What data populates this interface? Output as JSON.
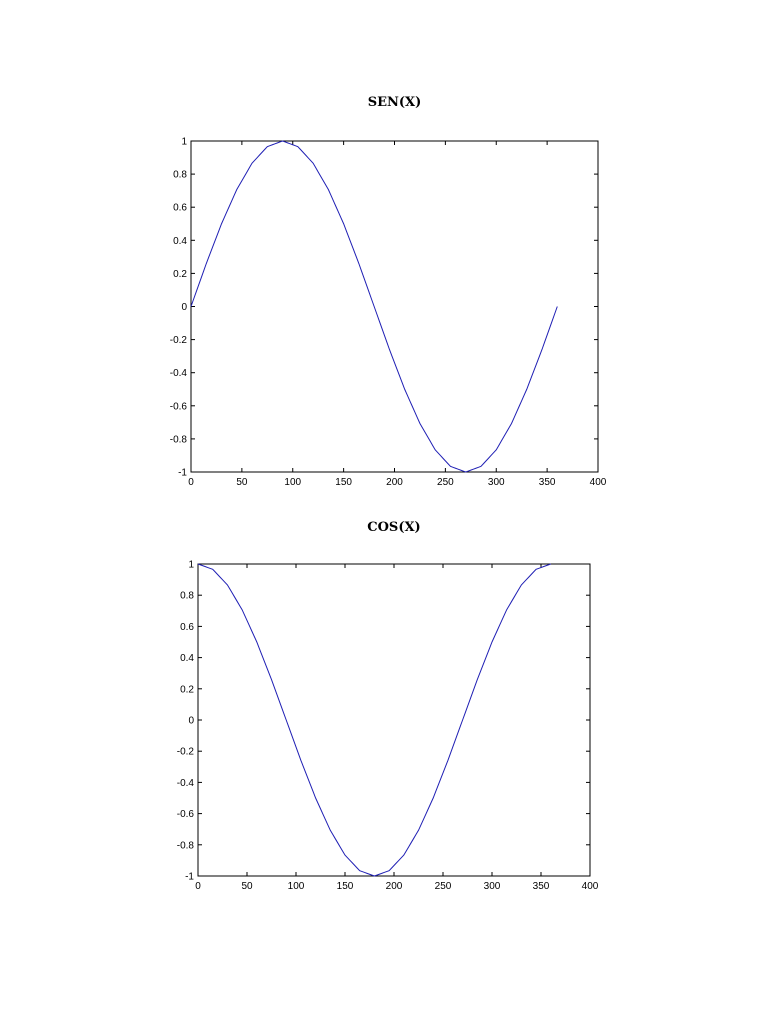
{
  "chart_data": [
    {
      "type": "line",
      "title": "SEN(X)",
      "xlabel": "",
      "ylabel": "",
      "xlim": [
        0,
        400
      ],
      "ylim": [
        -1,
        1
      ],
      "grid": false,
      "xticks": [
        0,
        50,
        100,
        150,
        200,
        250,
        300,
        350,
        400
      ],
      "yticks": [
        1,
        0.8,
        0.6,
        0.4,
        0.2,
        0,
        -0.2,
        -0.4,
        -0.6,
        -0.8,
        -1
      ],
      "xtick_labels": [
        "0",
        "50",
        "100",
        "150",
        "200",
        "250",
        "300",
        "350",
        "400"
      ],
      "ytick_labels": [
        "1",
        "0.8",
        "0.6",
        "0.4",
        "0.2",
        "0",
        "-0.2",
        "-0.4",
        "-0.6",
        "-0.8",
        "-1"
      ],
      "series_color": "#1f1fb4",
      "series": [
        {
          "x": [
            0,
            15,
            30,
            45,
            60,
            75,
            90,
            105,
            120,
            135,
            150,
            165,
            180,
            195,
            210,
            225,
            240,
            255,
            270,
            285,
            300,
            315,
            330,
            345,
            360
          ],
          "y": [
            0,
            0.259,
            0.5,
            0.707,
            0.866,
            0.966,
            1,
            0.966,
            0.866,
            0.707,
            0.5,
            0.259,
            0,
            -0.259,
            -0.5,
            -0.707,
            -0.866,
            -0.966,
            -1,
            -0.966,
            -0.866,
            -0.707,
            -0.5,
            -0.259,
            0
          ]
        }
      ]
    },
    {
      "type": "line",
      "title": "COS(X)",
      "xlabel": "",
      "ylabel": "",
      "xlim": [
        0,
        400
      ],
      "ylim": [
        -1,
        1
      ],
      "grid": false,
      "xticks": [
        0,
        50,
        100,
        150,
        200,
        250,
        300,
        350,
        400
      ],
      "yticks": [
        1,
        0.8,
        0.6,
        0.4,
        0.2,
        0,
        -0.2,
        -0.4,
        -0.6,
        -0.8,
        -1
      ],
      "xtick_labels": [
        "0",
        "50",
        "100",
        "150",
        "200",
        "250",
        "300",
        "350",
        "400"
      ],
      "ytick_labels": [
        "1",
        "0.8",
        "0.6",
        "0.4",
        "0.2",
        "0",
        "-0.2",
        "-0.4",
        "-0.6",
        "-0.8",
        "-1"
      ],
      "series_color": "#1f1fb4",
      "series": [
        {
          "x": [
            0,
            15,
            30,
            45,
            60,
            75,
            90,
            105,
            120,
            135,
            150,
            165,
            180,
            195,
            210,
            225,
            240,
            255,
            270,
            285,
            300,
            315,
            330,
            345,
            360
          ],
          "y": [
            1,
            0.966,
            0.866,
            0.707,
            0.5,
            0.259,
            0,
            -0.259,
            -0.5,
            -0.707,
            -0.866,
            -0.966,
            -1,
            -0.966,
            -0.866,
            -0.707,
            -0.5,
            -0.259,
            0,
            0.259,
            0.5,
            0.707,
            0.866,
            0.966,
            1
          ]
        }
      ]
    }
  ]
}
